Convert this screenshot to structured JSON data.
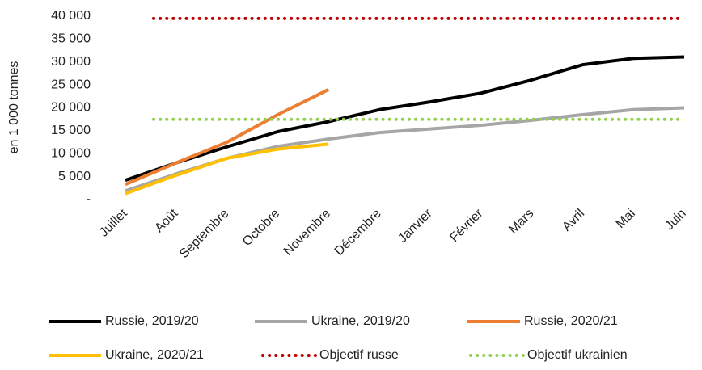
{
  "chart_data": {
    "type": "line",
    "y_label": "en 1 000 tonnes",
    "categories": [
      "Juillet",
      "Août",
      "Septembre",
      "Octobre",
      "Novembre",
      "Décembre",
      "Janvier",
      "Février",
      "Mars",
      "Avril",
      "Mai",
      "Juin"
    ],
    "ylim": [
      0,
      40000
    ],
    "yticks": [
      {
        "value": 0,
        "label": "-"
      },
      {
        "value": 5000,
        "label": "5 000"
      },
      {
        "value": 10000,
        "label": "10 000"
      },
      {
        "value": 15000,
        "label": "15 000"
      },
      {
        "value": 20000,
        "label": "20 000"
      },
      {
        "value": 25000,
        "label": "25 000"
      },
      {
        "value": 30000,
        "label": "30 000"
      },
      {
        "value": 35000,
        "label": "35 000"
      },
      {
        "value": 40000,
        "label": "40 000"
      }
    ],
    "grid": false,
    "legend": "bottom",
    "series": [
      {
        "name": "Russie, 2019/20",
        "color": "#000000",
        "style": "solid",
        "values": [
          4200,
          8000,
          11500,
          14800,
          17000,
          19600,
          21300,
          23200,
          26100,
          29400,
          30800,
          31100
        ]
      },
      {
        "name": "Ukraine, 2019/20",
        "color": "#a6a6a6",
        "style": "solid",
        "values": [
          1900,
          5600,
          9000,
          11600,
          13200,
          14600,
          15400,
          16200,
          17300,
          18500,
          19600,
          20000
        ]
      },
      {
        "name": "Russie, 2020/21",
        "color": "#ed7d31",
        "style": "solid",
        "values": [
          3300,
          8000,
          12500,
          18500,
          24000,
          null,
          null,
          null,
          null,
          null,
          null,
          null
        ]
      },
      {
        "name": "Ukraine, 2020/21",
        "color": "#ffc000",
        "style": "solid",
        "values": [
          1300,
          5300,
          9000,
          11000,
          12100,
          null,
          null,
          null,
          null,
          null,
          null,
          null
        ]
      },
      {
        "name": "Objectif russe",
        "color": "#c00000",
        "style": "dotted",
        "values": [
          39500,
          39500,
          39500,
          39500,
          39500,
          39500,
          39500,
          39500,
          39500,
          39500,
          39500,
          39500
        ]
      },
      {
        "name": "Objectif ukrainien",
        "color": "#92d050",
        "style": "dotted",
        "values": [
          17500,
          17500,
          17500,
          17500,
          17500,
          17500,
          17500,
          17500,
          17500,
          17500,
          17500,
          17500
        ]
      }
    ]
  }
}
